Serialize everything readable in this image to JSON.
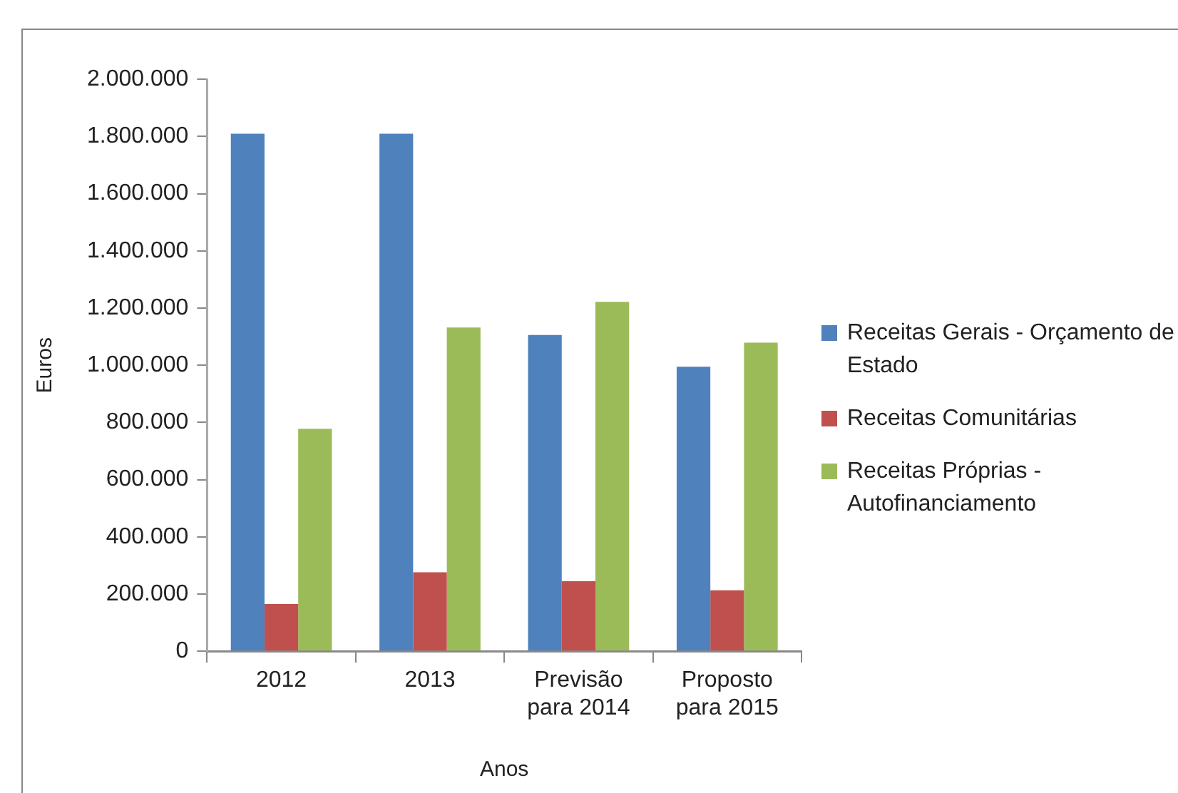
{
  "chart_data": {
    "type": "bar",
    "xlabel": "Anos",
    "ylabel": "Euros",
    "categories": [
      "2012",
      "2013",
      "Previsão para 2014",
      "Proposto para 2015"
    ],
    "series": [
      {
        "name": "Receitas Gerais - Orçamento de Estado",
        "color": "#4f81bd",
        "values": [
          1810000,
          1810000,
          1106000,
          995000
        ]
      },
      {
        "name": "Receitas Comunitárias",
        "color": "#c0504d",
        "values": [
          165000,
          276000,
          245000,
          213000
        ]
      },
      {
        "name": "Receitas Próprias - Autofinanciamento",
        "color": "#9bbb59",
        "values": [
          778000,
          1132000,
          1222000,
          1079000
        ]
      }
    ],
    "ylim": [
      0,
      2000000
    ],
    "yticks": [
      0,
      {
        "value": 200000,
        "label": "200.000"
      },
      {
        "value": 400000,
        "label": "400.000"
      },
      {
        "value": 600000,
        "label": "600.000"
      },
      {
        "value": 800000,
        "label": "800.000"
      },
      {
        "value": 1000000,
        "label": "1.000.000"
      },
      {
        "value": 1200000,
        "label": "1.200.000"
      },
      {
        "value": 1400000,
        "label": "1.400.000"
      },
      {
        "value": 1600000,
        "label": "1.600.000"
      },
      {
        "value": 1800000,
        "label": "1.800.000"
      },
      {
        "value": 2000000,
        "label": "2.000.000"
      }
    ],
    "grid": false,
    "legend": "right"
  }
}
